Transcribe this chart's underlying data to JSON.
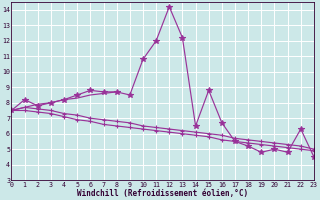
{
  "bg_color": "#cce8e8",
  "grid_color": "#b8d8d8",
  "line_color": "#993399",
  "xlim": [
    0,
    23
  ],
  "ylim": [
    3,
    14.5
  ],
  "xticks": [
    0,
    1,
    2,
    3,
    4,
    5,
    6,
    7,
    8,
    9,
    10,
    11,
    12,
    13,
    14,
    15,
    16,
    17,
    18,
    19,
    20,
    21,
    22,
    23
  ],
  "yticks": [
    3,
    4,
    5,
    6,
    7,
    8,
    9,
    10,
    11,
    12,
    13,
    14
  ],
  "xlabel": "Windchill (Refroidissement éolien,°C)",
  "series": [
    {
      "x": [
        0,
        1,
        2,
        3,
        4,
        5,
        6,
        7,
        8,
        9,
        10,
        11,
        12,
        13,
        14,
        15,
        16,
        17,
        18,
        19,
        20,
        21,
        22,
        23
      ],
      "y": [
        7.5,
        8.2,
        7.8,
        8.0,
        8.2,
        8.5,
        8.8,
        8.7,
        8.7,
        8.5,
        10.8,
        12.0,
        14.2,
        12.2,
        6.5,
        8.8,
        6.7,
        5.5,
        5.2,
        4.8,
        5.0,
        4.8,
        6.3,
        4.5
      ],
      "marker": "*",
      "ms": 4
    },
    {
      "x": [
        0,
        1,
        2,
        3,
        4,
        5,
        6,
        7,
        8,
        9,
        10,
        11,
        12,
        13,
        14,
        15,
        16,
        17,
        18,
        19,
        20,
        21,
        22,
        23
      ],
      "y": [
        7.5,
        7.7,
        7.6,
        7.5,
        7.3,
        7.2,
        7.0,
        6.9,
        6.8,
        6.7,
        6.5,
        6.4,
        6.3,
        6.2,
        6.1,
        6.0,
        5.9,
        5.7,
        5.6,
        5.5,
        5.4,
        5.3,
        5.2,
        5.0
      ],
      "marker": "+",
      "ms": 3.5
    },
    {
      "x": [
        0,
        1,
        2,
        3,
        4,
        5,
        6,
        7,
        8,
        9,
        10,
        11,
        12,
        13,
        14,
        15,
        16,
        17,
        18,
        19,
        20,
        21,
        22,
        23
      ],
      "y": [
        7.5,
        7.5,
        7.4,
        7.3,
        7.1,
        6.9,
        6.8,
        6.6,
        6.5,
        6.4,
        6.3,
        6.2,
        6.1,
        6.0,
        5.9,
        5.8,
        5.6,
        5.5,
        5.4,
        5.3,
        5.2,
        5.1,
        5.0,
        4.9
      ],
      "marker": "+",
      "ms": 3.5
    },
    {
      "x": [
        0,
        1,
        2,
        3,
        4,
        5,
        6,
        7,
        8
      ],
      "y": [
        7.5,
        7.7,
        7.9,
        8.0,
        8.2,
        8.3,
        8.5,
        8.6,
        8.7
      ],
      "marker": null,
      "ms": 0
    }
  ],
  "xlabel_color": "#330033",
  "tick_color": "#330033",
  "spine_color": "#330033",
  "xlabel_fontsize": 5.5,
  "tick_fontsize": 4.8,
  "lw": 0.85
}
